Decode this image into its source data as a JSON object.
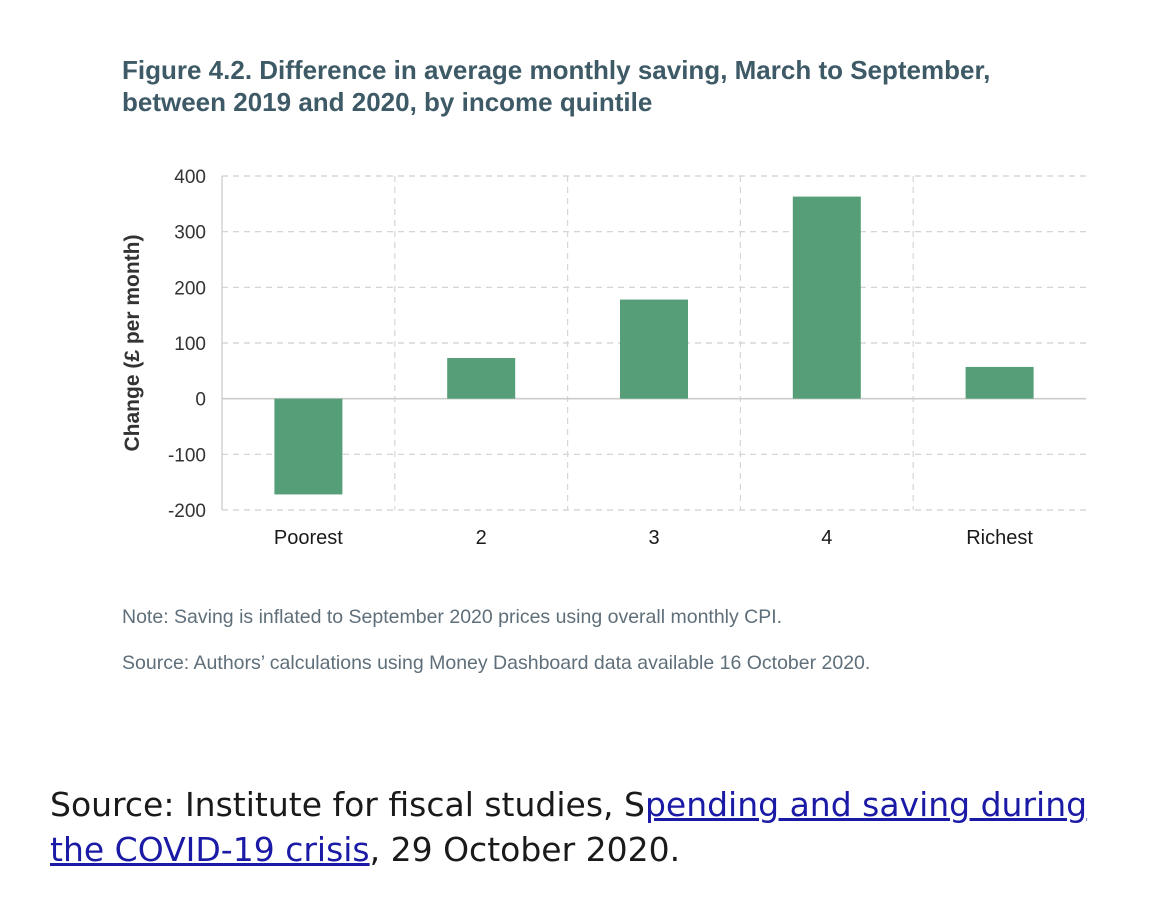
{
  "figure": {
    "title_line1": "Figure 4.2. Difference in average monthly saving, March to September,",
    "title_line2": "between 2019 and 2020, by income quintile",
    "note": "Note: Saving is inflated to September 2020 prices using overall monthly CPI.",
    "source": "Source: Authors’ calculations using Money Dashboard data available 16 October 2020."
  },
  "attribution": {
    "prefix": "Source: Institute for fiscal studies, S",
    "link_text": "pending and saving during the COVID-19 crisis",
    "suffix": ", 29 October 2020."
  },
  "chart_data": {
    "type": "bar",
    "title": "Figure 4.2. Difference in average monthly saving, March to September, between 2019 and 2020, by income quintile",
    "xlabel": "",
    "ylabel": "Change (£ per month)",
    "categories": [
      "Poorest",
      "2",
      "3",
      "4",
      "Richest"
    ],
    "values": [
      -172,
      73,
      178,
      363,
      57
    ],
    "ylim": [
      -200,
      400
    ],
    "yticks": [
      400,
      300,
      200,
      100,
      0,
      -100,
      -200
    ],
    "grid": true,
    "legend": "none",
    "bar_color": "#559e78"
  }
}
